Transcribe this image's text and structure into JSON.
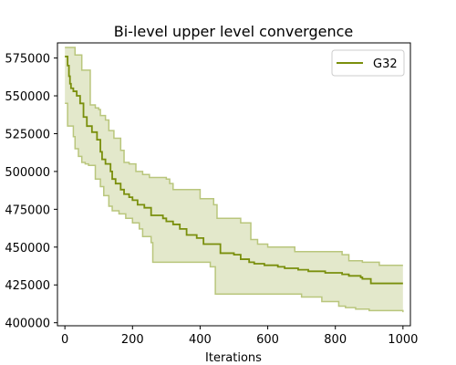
{
  "chart_data": {
    "type": "line",
    "title": "Bi-level upper level convergence",
    "xlabel": "Iterations",
    "ylabel": "",
    "xlim": [
      -22,
      1022
    ],
    "ylim": [
      398000,
      585000
    ],
    "xticks": [
      0,
      200,
      400,
      600,
      800,
      1000
    ],
    "yticks": [
      400000,
      425000,
      450000,
      475000,
      500000,
      525000,
      550000,
      575000
    ],
    "legend_position": "upper-right",
    "grid": false,
    "series": [
      {
        "name": "G32",
        "color": "#7a8f0c",
        "x": [
          0,
          8,
          12,
          15,
          18,
          25,
          35,
          45,
          55,
          65,
          80,
          95,
          105,
          110,
          120,
          135,
          140,
          150,
          165,
          175,
          190,
          200,
          215,
          235,
          255,
          290,
          300,
          320,
          340,
          360,
          390,
          410,
          440,
          460,
          500,
          520,
          545,
          560,
          590,
          630,
          650,
          690,
          720,
          770,
          820,
          840,
          875,
          880,
          905,
          1000
        ],
        "y": [
          576000,
          570000,
          563000,
          558000,
          555000,
          553000,
          550000,
          545000,
          536000,
          530000,
          526000,
          521000,
          513000,
          508000,
          505000,
          500000,
          495000,
          492000,
          488000,
          485000,
          483000,
          481000,
          478000,
          476000,
          471000,
          469000,
          467000,
          465000,
          462000,
          458000,
          456000,
          452000,
          452000,
          446000,
          445000,
          442000,
          440000,
          439000,
          438000,
          437000,
          436000,
          435000,
          434000,
          433000,
          432000,
          431000,
          430000,
          429000,
          426000,
          426000
        ]
      }
    ],
    "band": {
      "color": "#b9c67c",
      "upper_x": [
        0,
        30,
        50,
        75,
        90,
        100,
        105,
        120,
        130,
        145,
        165,
        175,
        190,
        210,
        230,
        250,
        300,
        310,
        320,
        340,
        400,
        440,
        450,
        520,
        550,
        570,
        600,
        680,
        800,
        820,
        840,
        880,
        930,
        1000
      ],
      "upper_y": [
        582000,
        577000,
        567000,
        544000,
        542000,
        541000,
        537000,
        534000,
        527000,
        522000,
        514000,
        506000,
        505000,
        500000,
        498000,
        496000,
        495000,
        492000,
        488000,
        488000,
        482000,
        478000,
        469000,
        466000,
        455000,
        452000,
        450000,
        447000,
        447000,
        445000,
        441000,
        440000,
        438000,
        438000
      ],
      "lower_x": [
        0,
        8,
        25,
        30,
        40,
        50,
        60,
        70,
        90,
        105,
        115,
        130,
        140,
        160,
        180,
        200,
        220,
        230,
        255,
        260,
        400,
        430,
        445,
        580,
        700,
        760,
        810,
        830,
        860,
        900,
        1000
      ],
      "lower_y": [
        545000,
        530000,
        523000,
        515000,
        510000,
        506000,
        505000,
        504000,
        495000,
        490000,
        484000,
        477000,
        474000,
        472000,
        469000,
        466000,
        462000,
        457000,
        453000,
        440000,
        440000,
        437000,
        419000,
        419000,
        417000,
        414000,
        411000,
        410000,
        409000,
        408000,
        407000
      ]
    }
  }
}
